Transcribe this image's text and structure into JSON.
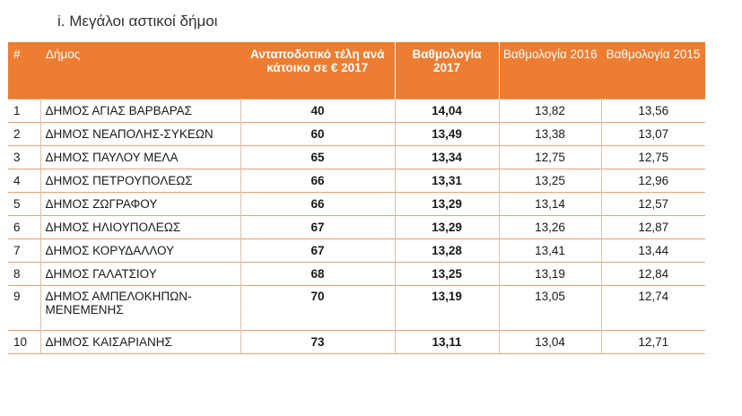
{
  "heading": "i. Μεγάλοι αστικοί δήμοι",
  "columns": {
    "index": "#",
    "name": "Δήμος",
    "fee": "Ανταποδοτικό τέλη ανά κάτοικο σε € 2017",
    "score2017": "Βαθμολογία 2017",
    "score2016": "Βαθμολογία 2016",
    "score2015": "Βαθμολογία 2015"
  },
  "rows": [
    {
      "index": "1",
      "name": "ΔΗΜΟΣ ΑΓΙΑΣ ΒΑΡΒΑΡΑΣ",
      "fee": "40",
      "score2017": "14,04",
      "score2016": "13,82",
      "score2015": "13,56"
    },
    {
      "index": "2",
      "name": "ΔΗΜΟΣ ΝΕΑΠΟΛΗΣ-ΣΥΚΕΩΝ",
      "fee": "60",
      "score2017": "13,49",
      "score2016": "13,38",
      "score2015": "13,07"
    },
    {
      "index": "3",
      "name": "ΔΗΜΟΣ ΠΑΥΛΟΥ ΜΕΛΑ",
      "fee": "65",
      "score2017": "13,34",
      "score2016": "12,75",
      "score2015": "12,75"
    },
    {
      "index": "4",
      "name": "ΔΗΜΟΣ ΠΕΤΡΟΥΠΟΛΕΩΣ",
      "fee": "66",
      "score2017": "13,31",
      "score2016": "13,25",
      "score2015": "12,96"
    },
    {
      "index": "5",
      "name": "ΔΗΜΟΣ ΖΩΓΡΑΦΟΥ",
      "fee": "66",
      "score2017": "13,29",
      "score2016": "13,14",
      "score2015": "12,57"
    },
    {
      "index": "6",
      "name": "ΔΗΜΟΣ ΗΛΙΟΥΠΟΛΕΩΣ",
      "fee": "67",
      "score2017": "13,29",
      "score2016": "13,26",
      "score2015": "12,87"
    },
    {
      "index": "7",
      "name": "ΔΗΜΟΣ ΚΟΡΥΔΑΛΛΟΥ",
      "fee": "67",
      "score2017": "13,28",
      "score2016": "13,41",
      "score2015": "13,44"
    },
    {
      "index": "8",
      "name": "ΔΗΜΟΣ ΓΑΛΑΤΣΙΟΥ",
      "fee": "68",
      "score2017": "13,25",
      "score2016": "13,19",
      "score2015": "12,84"
    },
    {
      "index": "9",
      "name": "ΔΗΜΟΣ ΑΜΠΕΛΟΚΗΠΩΝ-ΜΕΝΕΜΕΝΗΣ",
      "fee": "70",
      "score2017": "13,19",
      "score2016": "13,05",
      "score2015": "12,74"
    },
    {
      "index": "10",
      "name": "ΔΗΜΟΣ ΚΑΙΣΑΡΙΑΝΗΣ",
      "fee": "73",
      "score2017": "13,11",
      "score2016": "13,04",
      "score2015": "12,71"
    }
  ],
  "colors": {
    "header_bg": "#ed7d31",
    "header_text": "#ffffff",
    "row_line": "#e8a270"
  }
}
